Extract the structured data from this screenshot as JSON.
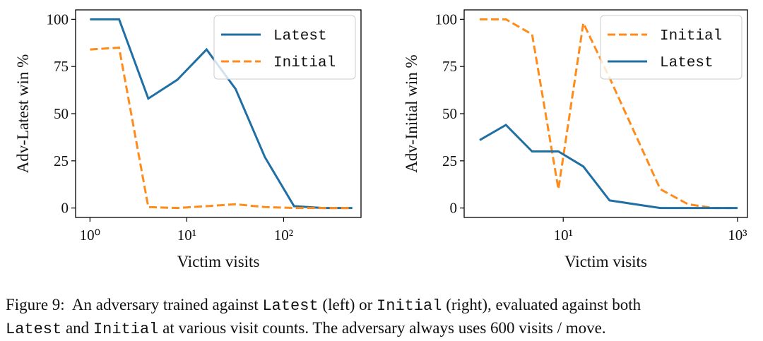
{
  "chart_data": [
    {
      "type": "line",
      "ylabel": "Adv-Latest win %",
      "xlabel": "Victim visits",
      "xscale": "log",
      "xlim": [
        0.71,
        630
      ],
      "ylim": [
        -5,
        105
      ],
      "xticks": [
        {
          "value": 1,
          "label": "10⁰"
        },
        {
          "value": 10,
          "label": "10¹"
        },
        {
          "value": 100,
          "label": "10²"
        }
      ],
      "yticks": [
        0,
        25,
        50,
        75,
        100
      ],
      "legend": "upper right",
      "series": [
        {
          "name": "Latest",
          "color": "#1f6fa4",
          "linestyle": "solid",
          "x": [
            1,
            2,
            4,
            8,
            16,
            32,
            64,
            128,
            256,
            512
          ],
          "values": [
            100,
            100,
            58,
            68,
            84,
            63,
            27,
            1,
            0,
            0
          ]
        },
        {
          "name": "Initial",
          "color": "#ff8c1a",
          "linestyle": "dashed",
          "x": [
            1,
            2,
            4,
            8,
            16,
            32,
            64,
            128,
            256,
            512
          ],
          "values": [
            84,
            85,
            0.5,
            0,
            1,
            2,
            0.5,
            0,
            0,
            0
          ]
        }
      ]
    },
    {
      "type": "line",
      "ylabel": "Adv-Initial win %",
      "xlabel": "Victim visits",
      "xscale": "log",
      "xlim": [
        0.73,
        1300
      ],
      "ylim": [
        -5,
        105
      ],
      "xticks": [
        {
          "value": 10,
          "label": "10¹"
        },
        {
          "value": 1000,
          "label": "10³"
        }
      ],
      "yticks": [
        0,
        25,
        50,
        75,
        100
      ],
      "legend": "upper right",
      "series": [
        {
          "name": "Initial",
          "color": "#ff8c1a",
          "linestyle": "dashed",
          "x": [
            1.1,
            2.2,
            4.4,
            8.8,
            17,
            34,
            130,
            270,
            530,
            1000
          ],
          "values": [
            100,
            100,
            92,
            10,
            98,
            69,
            10,
            2,
            0,
            0
          ]
        },
        {
          "name": "Latest",
          "color": "#1f6fa4",
          "linestyle": "solid",
          "x": [
            1.1,
            2.2,
            4.4,
            8.8,
            17,
            34,
            130,
            1000
          ],
          "values": [
            36,
            44,
            30,
            30,
            22,
            4,
            0,
            0
          ]
        }
      ]
    }
  ],
  "caption": {
    "lines": [
      [
        {
          "text": "Figure 9:  An adversary trained against ",
          "mono": false
        },
        {
          "text": "Latest",
          "mono": true
        },
        {
          "text": " (left) or ",
          "mono": false
        },
        {
          "text": "Initial",
          "mono": true
        },
        {
          "text": " (right), evaluated against both",
          "mono": false
        }
      ],
      [
        {
          "text": "Latest",
          "mono": true
        },
        {
          "text": " and ",
          "mono": false
        },
        {
          "text": "Initial",
          "mono": true
        },
        {
          "text": " at various visit counts. The adversary always uses 600 visits / move.",
          "mono": false
        }
      ]
    ]
  }
}
